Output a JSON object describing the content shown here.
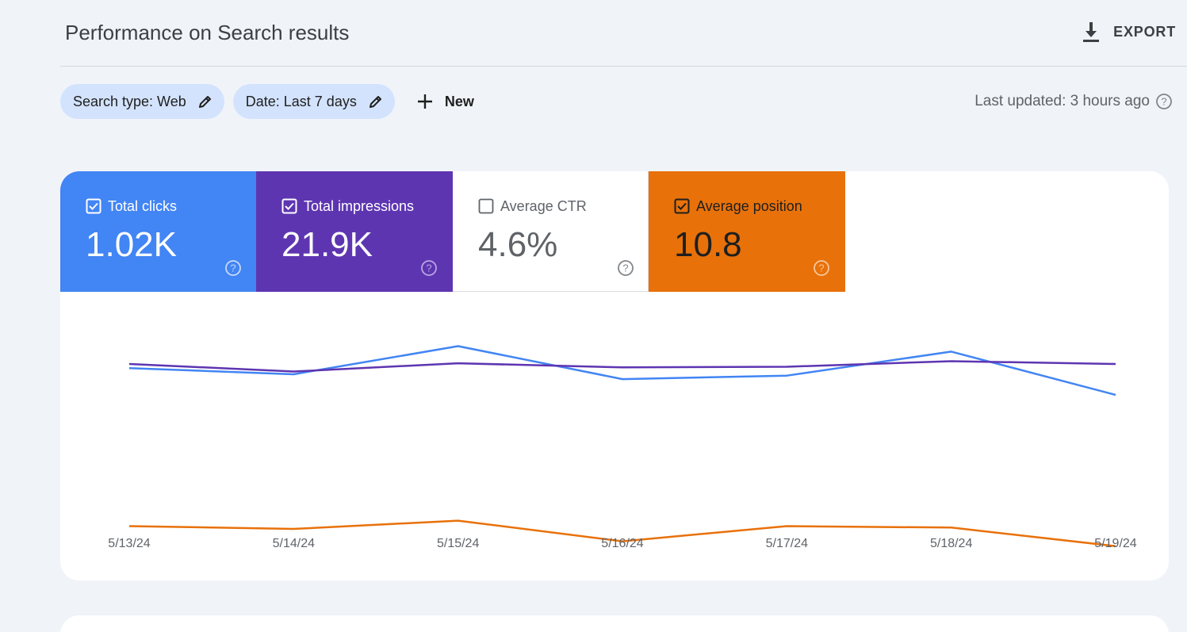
{
  "header": {
    "title": "Performance on Search results",
    "export_label": "EXPORT"
  },
  "filters": {
    "search_type": "Search type: Web",
    "date": "Date: Last 7 days",
    "new_label": "New"
  },
  "status": {
    "last_updated": "Last updated: 3 hours ago"
  },
  "metrics": {
    "clicks": {
      "label": "Total clicks",
      "value": "1.02K",
      "checked": true,
      "color": "#4285f4"
    },
    "impressions": {
      "label": "Total impressions",
      "value": "21.9K",
      "checked": true,
      "color": "#5e35b1"
    },
    "ctr": {
      "label": "Average CTR",
      "value": "4.6%",
      "checked": false,
      "color": "#ffffff"
    },
    "position": {
      "label": "Average position",
      "value": "10.8",
      "checked": true,
      "color": "#e8710a"
    }
  },
  "chart_data": {
    "type": "line",
    "x": [
      "5/13/24",
      "5/14/24",
      "5/15/24",
      "5/16/24",
      "5/17/24",
      "5/18/24",
      "5/19/24"
    ],
    "series": [
      {
        "name": "Total clicks",
        "color": "#4285f4",
        "values": [
          0.745,
          0.7,
          0.905,
          0.665,
          0.69,
          0.865,
          0.55
        ]
      },
      {
        "name": "Total impressions",
        "color": "#5e35b1",
        "values": [
          0.775,
          0.72,
          0.78,
          0.75,
          0.755,
          0.795,
          0.775
        ]
      },
      {
        "name": "Average position",
        "color": "#e8710a",
        "values": [
          -0.405,
          -0.425,
          -0.365,
          -0.515,
          -0.405,
          -0.415,
          -0.55
        ]
      }
    ],
    "ylim": [
      -0.8,
      1.3
    ],
    "normalized": true,
    "grid": false,
    "legend": "metric tiles above chart"
  }
}
